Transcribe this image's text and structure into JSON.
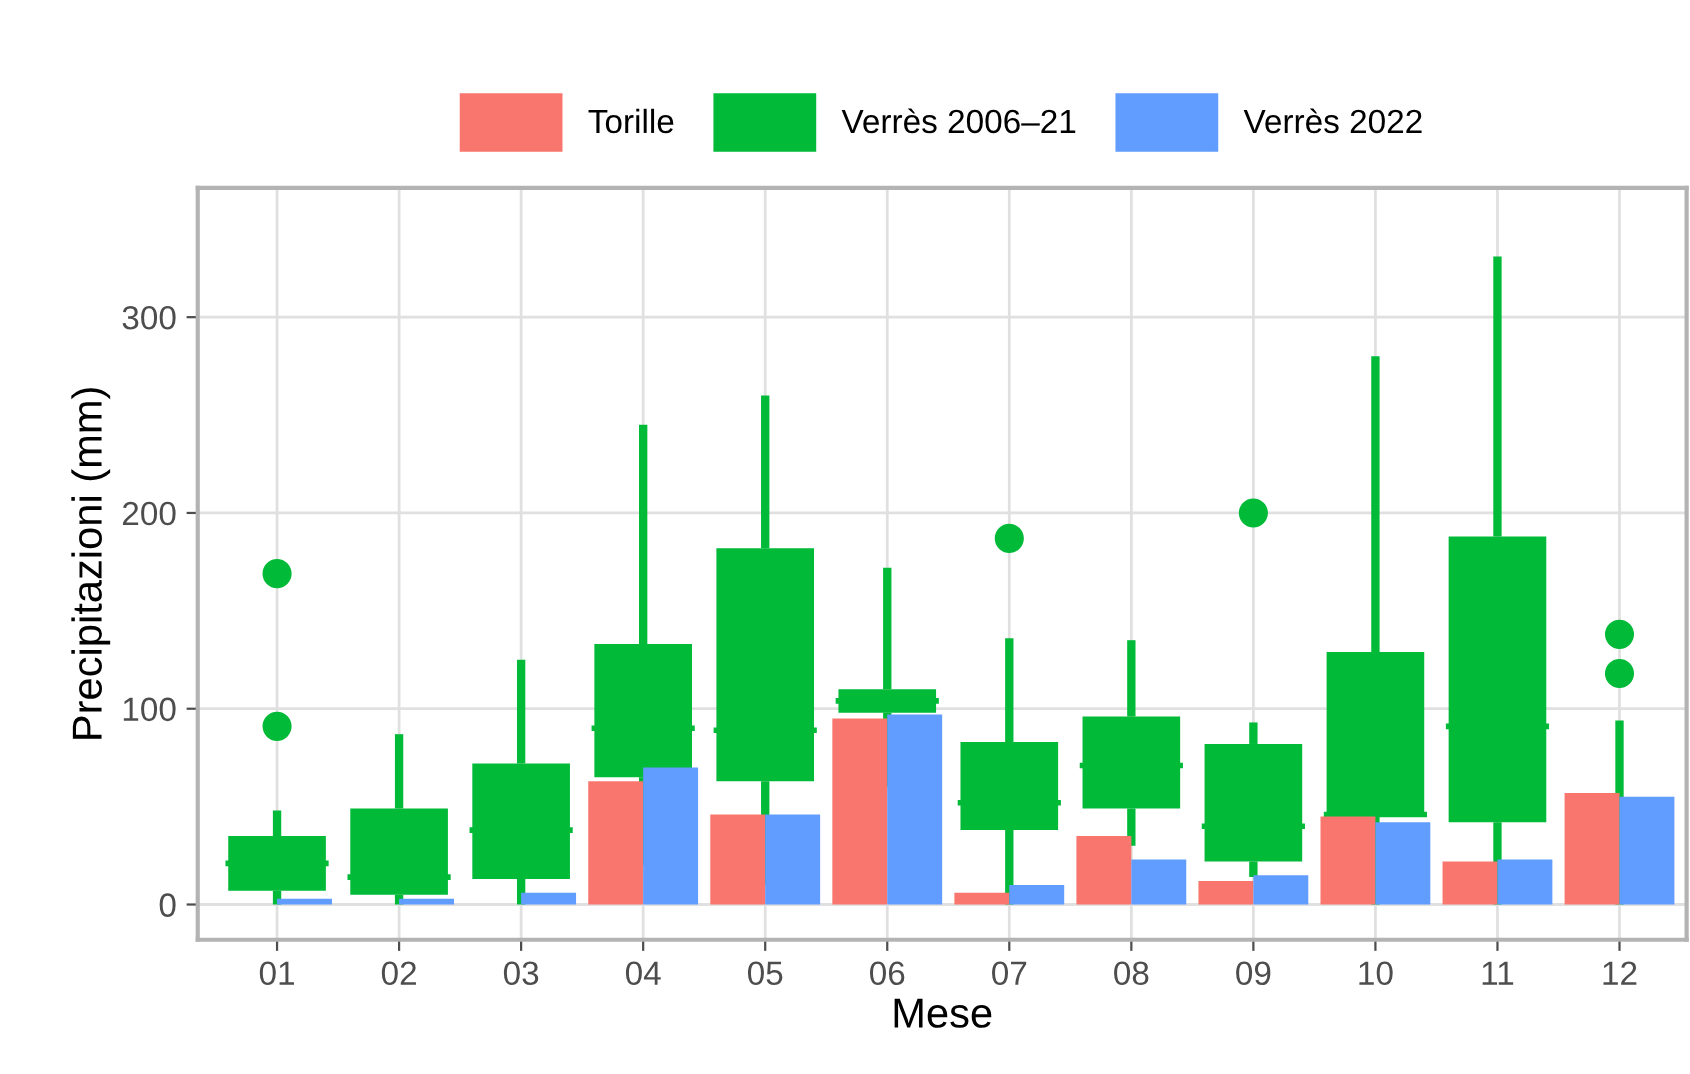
{
  "chart_data": {
    "type": "bar",
    "xlabel": "Mese",
    "ylabel": "Precipitazioni (mm)",
    "categories": [
      "01",
      "02",
      "03",
      "04",
      "05",
      "06",
      "07",
      "08",
      "09",
      "10",
      "11",
      "12"
    ],
    "ylim": [
      -18,
      366
    ],
    "yticks": [
      0,
      100,
      200,
      300
    ],
    "grid": true,
    "legend": "top",
    "series": [
      {
        "name": "Torille",
        "color": "#f8766d",
        "values": [
          null,
          null,
          null,
          63,
          46,
          95,
          6,
          35,
          12,
          45,
          22,
          57
        ]
      },
      {
        "name": "Verrès 2006–21",
        "type": "box",
        "color": "#00ba38",
        "boxes": [
          {
            "low": 0,
            "q1": 7,
            "median": 21,
            "q3": 35,
            "high": 48,
            "outliers": [
              91,
              169
            ]
          },
          {
            "low": 0,
            "q1": 5,
            "median": 14,
            "q3": 49,
            "high": 87
          },
          {
            "low": 0,
            "q1": 13,
            "median": 38,
            "q3": 72,
            "high": 125
          },
          {
            "low": 20,
            "q1": 65,
            "median": 90,
            "q3": 133,
            "high": 245
          },
          {
            "low": 10,
            "q1": 63,
            "median": 89,
            "q3": 182,
            "high": 260
          },
          {
            "low": 60,
            "q1": 98,
            "median": 104,
            "q3": 110,
            "high": 172
          },
          {
            "low": 0,
            "q1": 38,
            "median": 52,
            "q3": 83,
            "high": 136,
            "outliers": [
              187
            ]
          },
          {
            "low": 30,
            "q1": 49,
            "median": 71,
            "q3": 96,
            "high": 135
          },
          {
            "low": 14,
            "q1": 22,
            "median": 40,
            "q3": 82,
            "high": 93,
            "outliers": [
              200
            ]
          },
          {
            "low": 0,
            "q1": 45,
            "median": 46,
            "q3": 129,
            "high": 280
          },
          {
            "low": 0,
            "q1": 42,
            "median": 91,
            "q3": 188,
            "high": 331
          },
          {
            "low": 0,
            "q1": 20,
            "median": 35,
            "q3": 52,
            "high": 94,
            "outliers": [
              118,
              138
            ]
          }
        ]
      },
      {
        "name": "Verrès 2022",
        "color": "#619cff",
        "values": [
          3,
          3,
          6,
          70,
          46,
          97,
          10,
          23,
          15,
          42,
          23,
          55
        ]
      }
    ]
  }
}
